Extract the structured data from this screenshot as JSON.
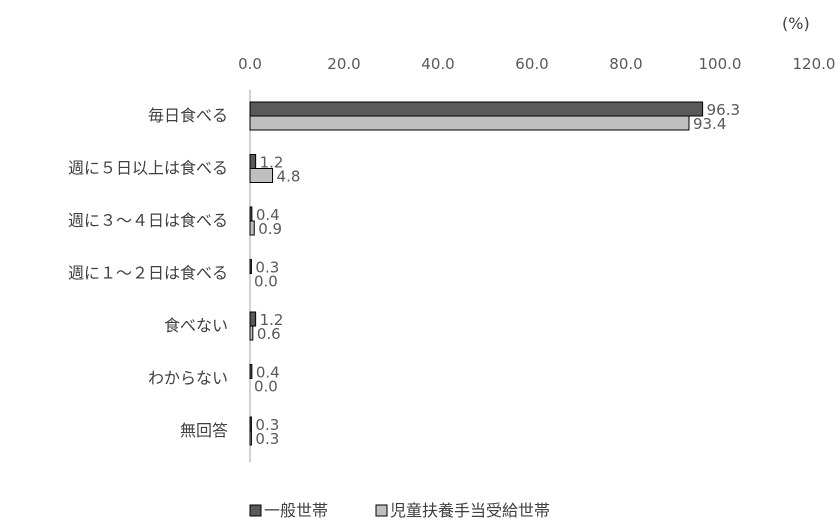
{
  "chart_data": {
    "type": "bar",
    "orientation": "horizontal",
    "unit_label": "(%)",
    "categories": [
      "毎日食べる",
      "週に５日以上は食べる",
      "週に３～４日は食べる",
      "週に１～２日は食べる",
      "食べない",
      "わからない",
      "無回答"
    ],
    "series": [
      {
        "name": "一般世帯",
        "color": "#595959",
        "values": [
          96.3,
          1.2,
          0.4,
          0.3,
          1.2,
          0.4,
          0.3
        ],
        "labels": [
          "96.3",
          "1.2",
          "0.4",
          "0.3",
          "1.2",
          "0.4",
          "0.3"
        ]
      },
      {
        "name": "児童扶養手当受給世帯",
        "color": "#bfbfbf",
        "values": [
          93.4,
          4.8,
          0.9,
          0.0,
          0.6,
          0.0,
          0.3
        ],
        "labels": [
          "93.4",
          "4.8",
          "0.9",
          "0.0",
          "0.6",
          "0.0",
          "0.3"
        ]
      }
    ],
    "xlim": [
      0,
      120
    ],
    "xticks": [
      "0.0",
      "20.0",
      "40.0",
      "60.0",
      "80.0",
      "100.0",
      "120.0"
    ],
    "legend_position": "bottom",
    "grid": false
  }
}
